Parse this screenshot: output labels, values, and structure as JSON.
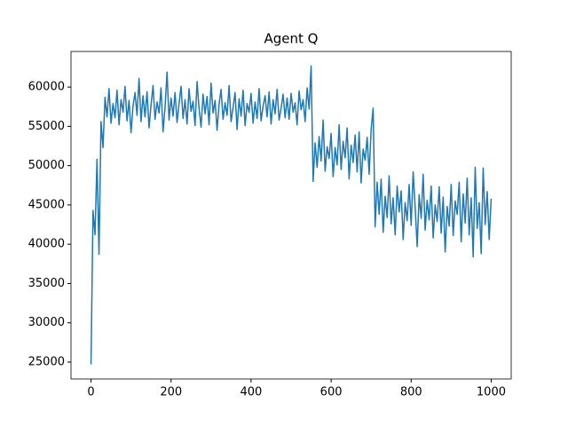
{
  "chart_data": {
    "type": "line",
    "title": "Agent Q",
    "x": [
      0,
      5,
      10,
      15,
      20,
      25,
      30,
      35,
      40,
      45,
      50,
      55,
      60,
      65,
      70,
      75,
      80,
      85,
      90,
      95,
      100,
      105,
      110,
      115,
      120,
      125,
      130,
      135,
      140,
      145,
      150,
      155,
      160,
      165,
      170,
      175,
      180,
      185,
      190,
      195,
      200,
      205,
      210,
      215,
      220,
      225,
      230,
      235,
      240,
      245,
      250,
      255,
      260,
      265,
      270,
      275,
      280,
      285,
      290,
      295,
      300,
      305,
      310,
      315,
      320,
      325,
      330,
      335,
      340,
      345,
      350,
      355,
      360,
      365,
      370,
      375,
      380,
      385,
      390,
      395,
      400,
      405,
      410,
      415,
      420,
      425,
      430,
      435,
      440,
      445,
      450,
      455,
      460,
      465,
      470,
      475,
      480,
      485,
      490,
      495,
      500,
      505,
      510,
      515,
      520,
      525,
      530,
      535,
      540,
      545,
      550,
      555,
      560,
      565,
      570,
      575,
      580,
      585,
      590,
      595,
      600,
      605,
      610,
      615,
      620,
      625,
      630,
      635,
      640,
      645,
      650,
      655,
      660,
      665,
      670,
      675,
      680,
      685,
      690,
      695,
      700,
      705,
      710,
      715,
      720,
      725,
      730,
      735,
      740,
      745,
      750,
      755,
      760,
      765,
      770,
      775,
      780,
      785,
      790,
      795,
      800,
      805,
      810,
      815,
      820,
      825,
      830,
      835,
      840,
      845,
      850,
      855,
      860,
      865,
      870,
      875,
      880,
      885,
      890,
      895,
      900,
      905,
      910,
      915,
      920,
      925,
      930,
      935,
      940,
      945,
      950,
      955,
      960,
      965,
      970,
      975,
      980,
      985,
      990,
      995,
      1000
    ],
    "series": [
      {
        "name": "Agent Q",
        "color": "#1f77b4",
        "values": [
          24700,
          44300,
          41200,
          50800,
          38700,
          55600,
          52300,
          58700,
          56200,
          59800,
          55400,
          57900,
          56100,
          59600,
          55200,
          58400,
          56800,
          60100,
          55700,
          58300,
          54200,
          57600,
          59300,
          56400,
          61100,
          55600,
          58900,
          56200,
          59400,
          54800,
          57700,
          60200,
          55900,
          58100,
          56700,
          59900,
          54300,
          57400,
          61900,
          55800,
          58600,
          56300,
          59300,
          55500,
          57900,
          60100,
          56000,
          58400,
          55300,
          59800,
          56900,
          58200,
          55100,
          60700,
          57300,
          54900,
          59100,
          56600,
          58800,
          55200,
          60500,
          56700,
          58300,
          54500,
          57800,
          59700,
          55900,
          58000,
          56400,
          60200,
          55600,
          57400,
          59300,
          54600,
          58500,
          56300,
          59600,
          55100,
          57900,
          56800,
          59200,
          55400,
          58100,
          56000,
          59800,
          55700,
          57600,
          58900,
          56200,
          59400,
          55300,
          58400,
          56600,
          59700,
          55800,
          57300,
          59100,
          56100,
          58600,
          55900,
          59200,
          56800,
          58000,
          55200,
          59500,
          57100,
          58400,
          55600,
          59900,
          57200,
          62700,
          48000,
          52900,
          49800,
          53700,
          50600,
          55800,
          49300,
          52400,
          50900,
          54100,
          48600,
          52300,
          50100,
          55200,
          49500,
          53100,
          51000,
          54800,
          48300,
          52600,
          50400,
          53900,
          49200,
          54300,
          47800,
          52100,
          50700,
          53600,
          48900,
          54600,
          57300,
          42200,
          47900,
          43800,
          48300,
          41500,
          46100,
          43400,
          48700,
          42600,
          45900,
          41200,
          47400,
          44100,
          46800,
          40600,
          45300,
          43000,
          47600,
          42400,
          49200,
          44700,
          39700,
          46300,
          43300,
          48900,
          41800,
          45600,
          43100,
          47400,
          40800,
          45000,
          42900,
          47300,
          41400,
          46000,
          39000,
          44800,
          42300,
          47600,
          41100,
          45500,
          43800,
          47900,
          40300,
          46400,
          42700,
          48400,
          41200,
          45900,
          38400,
          49800,
          42000,
          45300,
          38800,
          49700,
          42500,
          46700,
          40600,
          45800
        ]
      }
    ],
    "xlim": [
      -50,
      1050
    ],
    "ylim": [
      22850,
      64530
    ],
    "xticks": [
      0,
      200,
      400,
      600,
      800,
      1000
    ],
    "yticks": [
      25000,
      30000,
      35000,
      40000,
      45000,
      50000,
      55000,
      60000
    ]
  }
}
